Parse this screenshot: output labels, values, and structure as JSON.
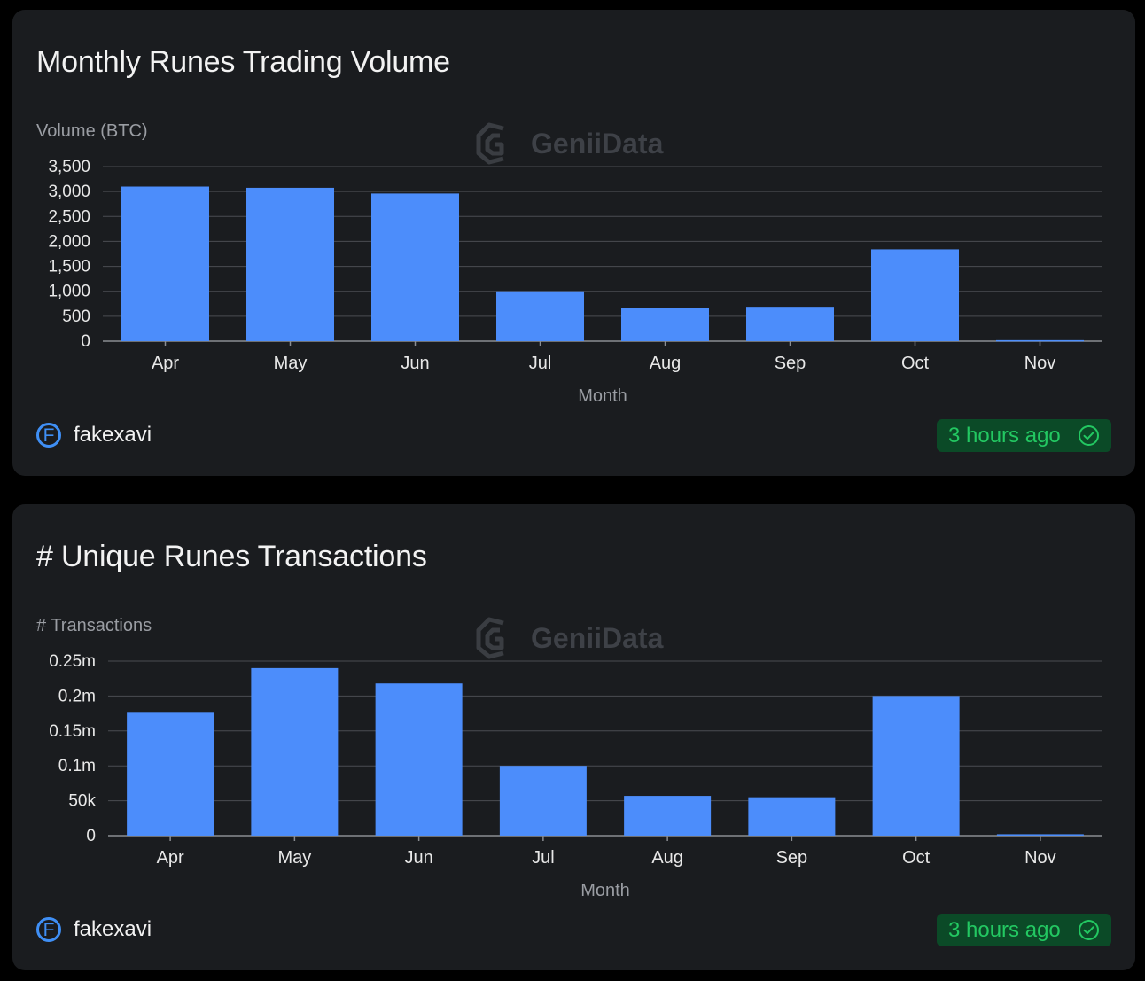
{
  "cards": [
    {
      "title": "Monthly Runes Trading Volume",
      "watermark": "GeniiData",
      "author": {
        "initial": "F",
        "name": "fakexavi"
      },
      "status": {
        "text": "3 hours ago",
        "icon": "check-circle-icon"
      },
      "chart_data": {
        "type": "bar",
        "title": "Monthly Runes Trading Volume",
        "xlabel": "Month",
        "ylabel": "Volume (BTC)",
        "categories": [
          "Apr",
          "May",
          "Jun",
          "Jul",
          "Aug",
          "Sep",
          "Oct",
          "Nov"
        ],
        "values": [
          3100,
          3075,
          2960,
          1000,
          660,
          690,
          1840,
          20
        ],
        "ylim": [
          0,
          3500
        ],
        "yticks": [
          0,
          500,
          1000,
          1500,
          2000,
          2500,
          3000,
          3500
        ],
        "ytick_labels": [
          "0",
          "500",
          "1,000",
          "1,500",
          "2,000",
          "2,500",
          "3,000",
          "3,500"
        ],
        "grid": true,
        "bar_color": "#4c8dfb"
      }
    },
    {
      "title": "# Unique Runes Transactions",
      "watermark": "GeniiData",
      "author": {
        "initial": "F",
        "name": "fakexavi"
      },
      "status": {
        "text": "3 hours ago",
        "icon": "check-circle-icon"
      },
      "chart_data": {
        "type": "bar",
        "title": "# Unique Runes Transactions",
        "xlabel": "Month",
        "ylabel": "# Transactions",
        "categories": [
          "Apr",
          "May",
          "Jun",
          "Jul",
          "Aug",
          "Sep",
          "Oct",
          "Nov"
        ],
        "values": [
          176000,
          240000,
          218000,
          100000,
          57000,
          55000,
          200000,
          2000
        ],
        "ylim": [
          0,
          250000
        ],
        "yticks": [
          0,
          50000,
          100000,
          150000,
          200000,
          250000
        ],
        "ytick_labels": [
          "0",
          "50k",
          "0.1m",
          "0.15m",
          "0.2m",
          "0.25m"
        ],
        "grid": true,
        "bar_color": "#4c8dfb"
      }
    }
  ]
}
